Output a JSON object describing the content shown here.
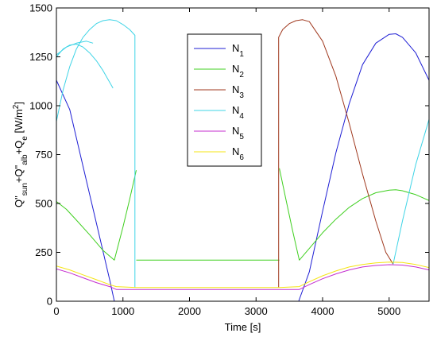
{
  "chart_data": {
    "type": "line",
    "xlabel": "Time [s]",
    "ylabel": {
      "parts": [
        {
          "t": "Q\"",
          "sub": "sun"
        },
        {
          "t": "+Q\"",
          "sub": "alb"
        },
        {
          "t": "+Q",
          "sub": "e"
        },
        {
          "t": " [W/m",
          "sup": "2"
        },
        {
          "t": "]"
        }
      ]
    },
    "xlim": [
      0,
      5600
    ],
    "ylim": [
      0,
      1500
    ],
    "xticks": [
      0,
      1000,
      2000,
      3000,
      4000,
      5000
    ],
    "yticks": [
      0,
      250,
      500,
      750,
      1000,
      1250,
      1500
    ],
    "grid": false,
    "legend_position": "top-center",
    "series": [
      {
        "name": "N",
        "sub": "1",
        "color": "#1f1fd4",
        "segments": [
          [
            [
              0,
              1130
            ],
            [
              200,
              980
            ],
            [
              400,
              690
            ],
            [
              600,
              400
            ],
            [
              800,
              110
            ],
            [
              870,
              0
            ]
          ],
          [
            [
              870,
              0
            ],
            [
              3640,
              0
            ]
          ],
          [
            [
              3640,
              0
            ],
            [
              3800,
              150
            ],
            [
              4000,
              460
            ],
            [
              4200,
              760
            ],
            [
              4400,
              1010
            ],
            [
              4600,
              1210
            ],
            [
              4800,
              1320
            ],
            [
              5000,
              1365
            ],
            [
              5100,
              1368
            ],
            [
              5200,
              1350
            ],
            [
              5400,
              1270
            ],
            [
              5600,
              1130
            ]
          ]
        ]
      },
      {
        "name": "N",
        "sub": "2",
        "color": "#3fcf1f",
        "segments": [
          [
            [
              0,
              510
            ],
            [
              150,
              470
            ],
            [
              300,
              415
            ],
            [
              500,
              340
            ],
            [
              700,
              260
            ],
            [
              870,
              210
            ],
            [
              1000,
              380
            ],
            [
              1100,
              520
            ],
            [
              1200,
              670
            ]
          ],
          [
            [
              1200,
              210
            ],
            [
              3350,
              210
            ]
          ],
          [
            [
              3350,
              680
            ],
            [
              3450,
              520
            ],
            [
              3550,
              360
            ],
            [
              3650,
              210
            ],
            [
              3800,
              270
            ],
            [
              4000,
              350
            ],
            [
              4200,
              420
            ],
            [
              4400,
              480
            ],
            [
              4600,
              525
            ],
            [
              4800,
              555
            ],
            [
              5000,
              568
            ],
            [
              5100,
              570
            ],
            [
              5200,
              565
            ],
            [
              5400,
              545
            ],
            [
              5600,
              515
            ]
          ]
        ]
      },
      {
        "name": "N",
        "sub": "3",
        "color": "#a0391f",
        "segments": [
          [
            [
              3340,
              70
            ],
            [
              3340,
              1350
            ],
            [
              3400,
              1390
            ],
            [
              3500,
              1420
            ],
            [
              3600,
              1435
            ],
            [
              3700,
              1440
            ],
            [
              3800,
              1430
            ],
            [
              4000,
              1330
            ],
            [
              4200,
              1150
            ],
            [
              4400,
              910
            ],
            [
              4600,
              650
            ],
            [
              4800,
              410
            ],
            [
              4950,
              250
            ],
            [
              5060,
              190
            ]
          ]
        ]
      },
      {
        "name": "N",
        "sub": "4",
        "color": "#3fd4e6",
        "segments": [
          [
            [
              0,
              920
            ],
            [
              100,
              1080
            ],
            [
              200,
              1200
            ],
            [
              300,
              1290
            ],
            [
              400,
              1350
            ],
            [
              500,
              1390
            ],
            [
              600,
              1420
            ],
            [
              700,
              1435
            ],
            [
              800,
              1440
            ],
            [
              900,
              1435
            ],
            [
              1000,
              1415
            ],
            [
              1100,
              1390
            ],
            [
              1180,
              1360
            ],
            [
              1180,
              70
            ]
          ],
          [
            [
              0,
              1250
            ],
            [
              100,
              1290
            ],
            [
              200,
              1310
            ],
            [
              300,
              1315
            ],
            [
              400,
              1300
            ],
            [
              500,
              1270
            ],
            [
              600,
              1230
            ],
            [
              700,
              1180
            ],
            [
              800,
              1120
            ],
            [
              850,
              1090
            ]
          ],
          [
            [
              0,
              1260
            ],
            [
              150,
              1300
            ],
            [
              300,
              1320
            ],
            [
              450,
              1330
            ],
            [
              550,
              1320
            ]
          ],
          [
            [
              5060,
              190
            ],
            [
              5200,
              410
            ],
            [
              5400,
              700
            ],
            [
              5600,
              930
            ]
          ]
        ]
      },
      {
        "name": "N",
        "sub": "5",
        "color": "#c42ccf",
        "segments": [
          [
            [
              0,
              165
            ],
            [
              200,
              145
            ],
            [
              400,
              120
            ],
            [
              600,
              95
            ],
            [
              800,
              75
            ],
            [
              900,
              60
            ],
            [
              1200,
              60
            ],
            [
              3350,
              60
            ],
            [
              3650,
              60
            ],
            [
              3800,
              85
            ],
            [
              4000,
              115
            ],
            [
              4200,
              140
            ],
            [
              4400,
              160
            ],
            [
              4600,
              175
            ],
            [
              4800,
              183
            ],
            [
              5000,
              187
            ],
            [
              5200,
              185
            ],
            [
              5400,
              175
            ],
            [
              5600,
              160
            ]
          ]
        ]
      },
      {
        "name": "N",
        "sub": "6",
        "color": "#f5e414",
        "segments": [
          [
            [
              0,
              180
            ],
            [
              200,
              160
            ],
            [
              400,
              135
            ],
            [
              600,
              110
            ],
            [
              800,
              85
            ],
            [
              900,
              75
            ],
            [
              1200,
              70
            ],
            [
              3350,
              70
            ],
            [
              3650,
              75
            ],
            [
              3800,
              100
            ],
            [
              4000,
              130
            ],
            [
              4200,
              155
            ],
            [
              4400,
              175
            ],
            [
              4600,
              188
            ],
            [
              4800,
              196
            ],
            [
              5000,
              200
            ],
            [
              5200,
              198
            ],
            [
              5400,
              188
            ],
            [
              5600,
              172
            ]
          ]
        ]
      }
    ]
  }
}
